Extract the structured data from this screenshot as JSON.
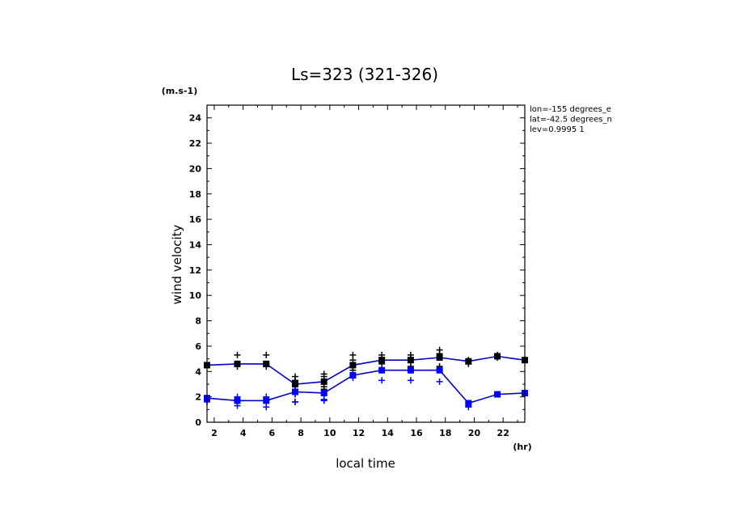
{
  "chart_data": {
    "type": "line",
    "title": "Ls=323 (321-326)",
    "xlabel": "local time",
    "ylabel": "wind velocity",
    "x_unit": "(hr)",
    "y_unit": "(m.s-1)",
    "info_lines": [
      "lon=-155 degrees_e",
      "lat=-42.5 degrees_n",
      "lev=0.9995 1"
    ],
    "xlim": [
      1.5,
      23.5
    ],
    "ylim": [
      0,
      25
    ],
    "xticks": [
      2,
      4,
      6,
      8,
      10,
      12,
      14,
      16,
      18,
      20,
      22
    ],
    "yticks": [
      0,
      2,
      4,
      6,
      8,
      10,
      12,
      14,
      16,
      18,
      20,
      22,
      24
    ],
    "grid": false,
    "series": [
      {
        "color": "#000000",
        "line_color": "#0000cc",
        "x": [
          1.5,
          3.6,
          5.6,
          7.6,
          9.6,
          11.6,
          13.6,
          15.6,
          17.6,
          19.6,
          21.6,
          23.5
        ],
        "values": [
          4.5,
          4.6,
          4.6,
          3.0,
          3.2,
          4.5,
          4.9,
          4.9,
          5.1,
          4.8,
          5.2,
          4.9
        ],
        "spread": [
          [
            4.5
          ],
          [
            4.4,
            4.6,
            5.3
          ],
          [
            4.4,
            4.6,
            5.3
          ],
          [
            1.6,
            2.2,
            2.9,
            3.3,
            3.6
          ],
          [
            2.6,
            2.8,
            3.6,
            3.8
          ],
          [
            4.1,
            4.4,
            4.9,
            5.3
          ],
          [
            4.6,
            5.1,
            5.3
          ],
          [
            4.4,
            5.1,
            5.3
          ],
          [
            4.2,
            4.4,
            5.4,
            5.7
          ],
          [
            4.6,
            4.9
          ],
          [
            5.1,
            5.3
          ],
          [
            4.9
          ]
        ]
      },
      {
        "color": "#0000ff",
        "line_color": "#0000cc",
        "x": [
          1.5,
          3.6,
          5.6,
          7.6,
          9.6,
          11.6,
          13.6,
          15.6,
          17.6,
          19.6,
          21.6,
          23.5
        ],
        "values": [
          1.9,
          1.7,
          1.7,
          2.4,
          2.3,
          3.7,
          4.1,
          4.1,
          4.1,
          1.5,
          2.2,
          2.3
        ],
        "spread": [
          [
            1.6,
            1.9
          ],
          [
            1.3,
            1.6,
            2.0
          ],
          [
            1.2,
            1.7,
            2.0
          ],
          [
            1.6,
            2.4
          ],
          [
            1.7,
            1.8,
            2.2
          ],
          [
            3.5,
            3.7
          ],
          [
            3.3,
            4.1
          ],
          [
            3.3,
            4.1
          ],
          [
            3.2,
            4.1
          ],
          [
            1.2,
            1.5
          ],
          [
            2.2
          ],
          [
            2.3
          ]
        ]
      }
    ]
  }
}
